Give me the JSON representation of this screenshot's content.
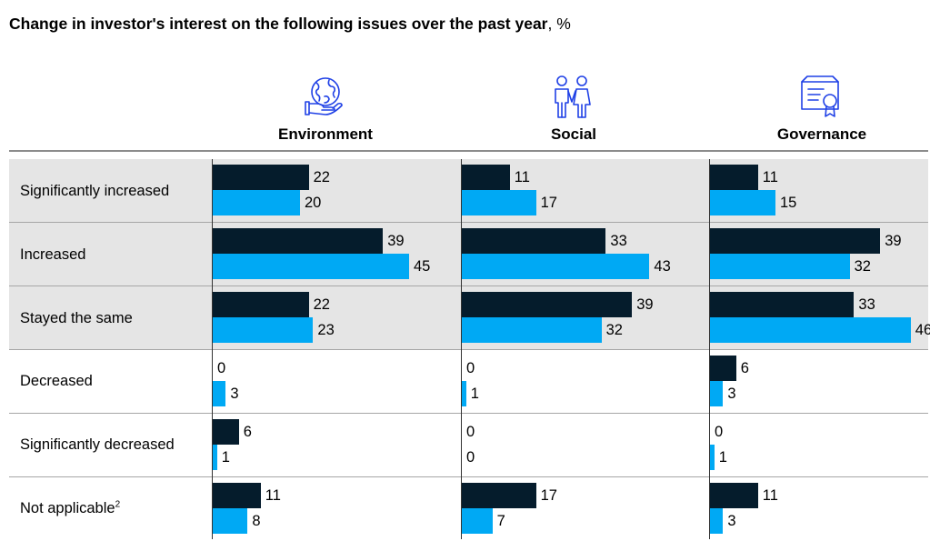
{
  "title": {
    "bold": "Change in investor's interest on the following issues over the past year",
    "suffix": ", %"
  },
  "colors": {
    "series_dark": "#051c2c",
    "series_light": "#00a9f4",
    "band": "#e5e5e5",
    "icon": "#1f40e6"
  },
  "icons": [
    "globe-hand-icon",
    "people-icon",
    "certificate-icon"
  ],
  "chart_data": {
    "type": "bar",
    "orientation": "horizontal",
    "title": "Change in investor's interest on the following issues over the past year, %",
    "panels": [
      "Environment",
      "Social",
      "Governance"
    ],
    "categories": [
      "Significantly increased",
      "Increased",
      "Stayed the same",
      "Decreased",
      "Significantly decreased",
      "Not applicable"
    ],
    "category_footnotes": [
      "",
      "",
      "",
      "",
      "",
      "2"
    ],
    "xlim": [
      0,
      50
    ],
    "series": [
      {
        "name": "dark",
        "values": {
          "Environment": [
            22,
            39,
            22,
            0,
            6,
            11
          ],
          "Social": [
            11,
            33,
            39,
            0,
            0,
            17
          ],
          "Governance": [
            11,
            39,
            33,
            6,
            0,
            11
          ]
        }
      },
      {
        "name": "light",
        "values": {
          "Environment": [
            20,
            45,
            23,
            3,
            1,
            8
          ],
          "Social": [
            17,
            43,
            32,
            1,
            0,
            7
          ],
          "Governance": [
            15,
            32,
            46,
            3,
            1,
            3
          ]
        }
      }
    ]
  }
}
